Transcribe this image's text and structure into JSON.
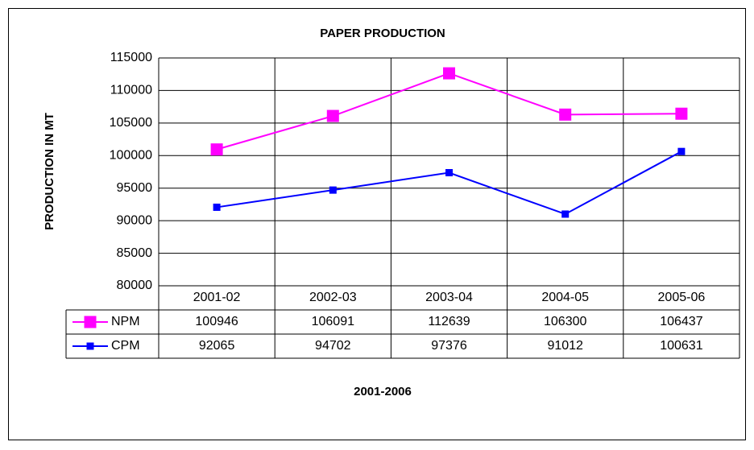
{
  "chart_data": {
    "type": "line",
    "title": "PAPER PRODUCTION",
    "y_label": "PRODUCTION IN MT",
    "x_label": "2001-2006",
    "categories": [
      "2001-02",
      "2002-03",
      "2003-04",
      "2004-05",
      "2005-06"
    ],
    "series": [
      {
        "name": "NPM",
        "color": "#ff00ff",
        "values": [
          100946,
          106091,
          112639,
          106300,
          106437
        ]
      },
      {
        "name": "CPM",
        "color": "#0000ff",
        "values": [
          92065,
          94702,
          97376,
          91012,
          100631
        ]
      }
    ],
    "ylim": [
      80000,
      115000
    ],
    "yticks": [
      80000,
      85000,
      90000,
      95000,
      100000,
      105000,
      110000,
      115000
    ],
    "grid": true
  }
}
